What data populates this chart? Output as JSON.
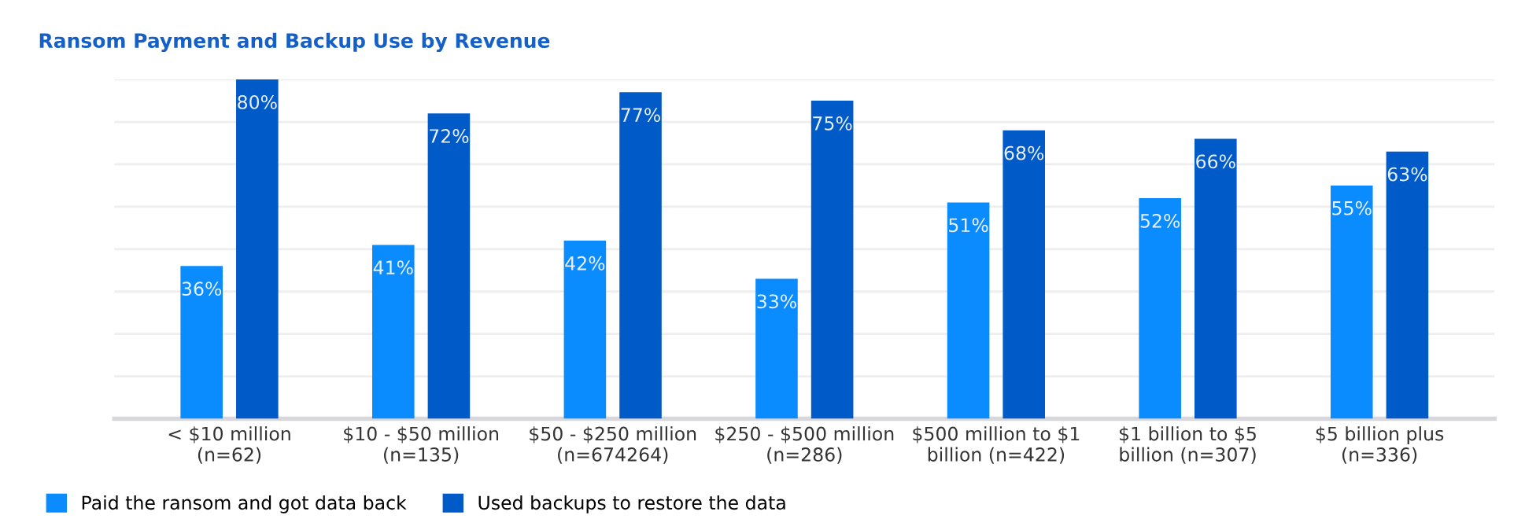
{
  "chart_data": {
    "type": "bar",
    "title": "Ransom Payment and Backup Use by Revenue",
    "categories": [
      "< $10 million\n(n=62)",
      "$10 - $50 million\n(n=135)",
      "$50 - $250 million\n(n=674264)",
      "$250 - $500 million\n(n=286)",
      "$500 million to $1\nbillion (n=422)",
      "$1 billion to $5\nbillion (n=307)",
      "$5 billion plus\n(n=336)"
    ],
    "series": [
      {
        "name": "Paid the ransom and got data back",
        "color": "#0a8cff",
        "values": [
          36,
          41,
          42,
          33,
          51,
          52,
          55
        ],
        "value_labels": [
          "36%",
          "41%",
          "42%",
          "33%",
          "51%",
          "52%",
          "55%"
        ]
      },
      {
        "name": "Used backups to restore the data",
        "color": "#005ac8",
        "values": [
          80,
          72,
          77,
          75,
          68,
          66,
          63
        ],
        "value_labels": [
          "80%",
          "72%",
          "77%",
          "75%",
          "68%",
          "66%",
          "63%"
        ]
      }
    ],
    "ylim": [
      0,
      80
    ],
    "yticks": [
      {
        "value": 0,
        "label": null
      },
      {
        "value": 10,
        "label": null
      },
      {
        "value": 20,
        "label": null
      },
      {
        "value": 30,
        "label": null
      },
      {
        "value": 40,
        "label": null
      },
      {
        "value": 50,
        "label": null
      },
      {
        "value": 60,
        "label": null
      },
      {
        "value": 70,
        "label": null
      },
      {
        "value": 80,
        "label": null
      }
    ],
    "grid": "y",
    "legend": "bottom left",
    "tick_labels": "x"
  }
}
